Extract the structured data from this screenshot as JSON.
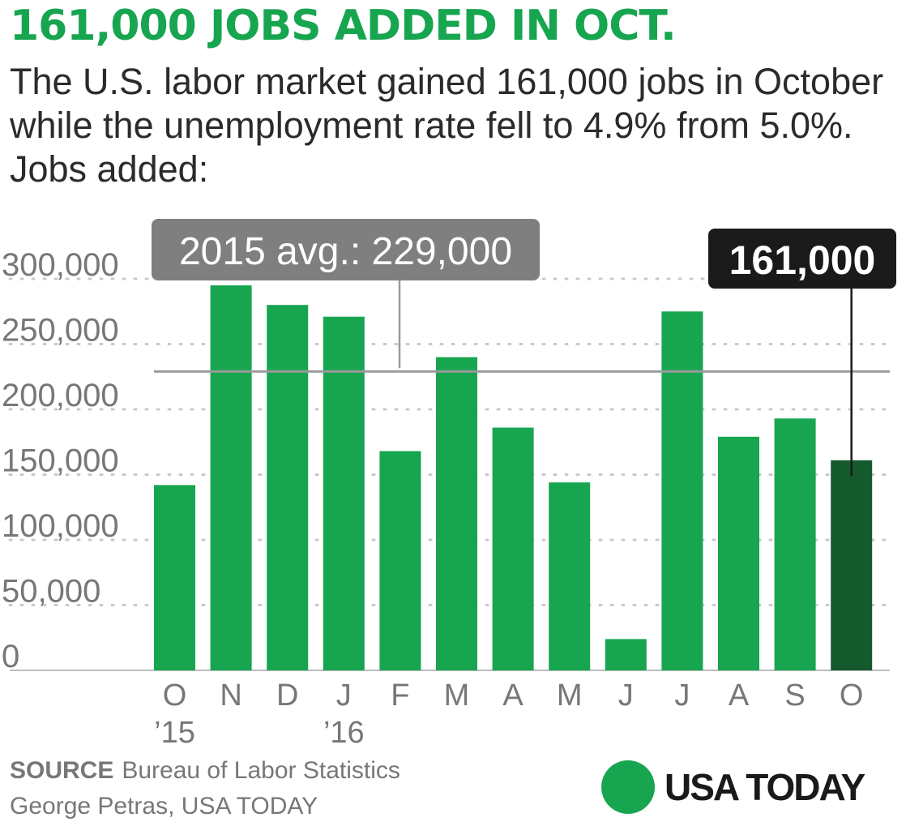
{
  "headline": "161,000 JOBS ADDED IN OCT.",
  "subtitle": "The U.S. labor market gained 161,000 jobs in October while the unemployment rate fell to 4.9% from 5.0%. Jobs added:",
  "chart_data": {
    "type": "bar",
    "categories": [
      "O",
      "N",
      "D",
      "J",
      "F",
      "M",
      "A",
      "M",
      "J",
      "J",
      "A",
      "S",
      "O"
    ],
    "year_labels": [
      "’15",
      "",
      "",
      "’16",
      "",
      "",
      "",
      "",
      "",
      "",
      "",
      "",
      ""
    ],
    "values": [
      142000,
      295000,
      280000,
      271000,
      168000,
      240000,
      186000,
      144000,
      24000,
      275000,
      179000,
      193000,
      161000
    ],
    "ylim": [
      0,
      300000
    ],
    "yticks": [
      0,
      50000,
      100000,
      150000,
      200000,
      250000,
      300000
    ],
    "ytick_labels": [
      "0",
      "50,000",
      "100,000",
      "150,000",
      "200,000",
      "250,000",
      "300,000"
    ],
    "grid": true,
    "reference_line": {
      "value": 229000,
      "label": "2015 avg.: 229,000"
    },
    "highlight": {
      "index": 12,
      "label": "161,000"
    },
    "colors": {
      "bar": "#17a550",
      "highlight": "#145a2c",
      "reference": "#9a9a9a",
      "callout_bg": "#7f7f7f",
      "highlight_callout_bg": "#1a1a1a",
      "grid": "#c8c8c8",
      "tick_text": "#777777"
    }
  },
  "source_label": "SOURCE",
  "source_text": "Bureau of Labor Statistics",
  "credit": "George Petras, USA TODAY",
  "logo": {
    "text": "USA TODAY",
    "color": "#17a550"
  }
}
